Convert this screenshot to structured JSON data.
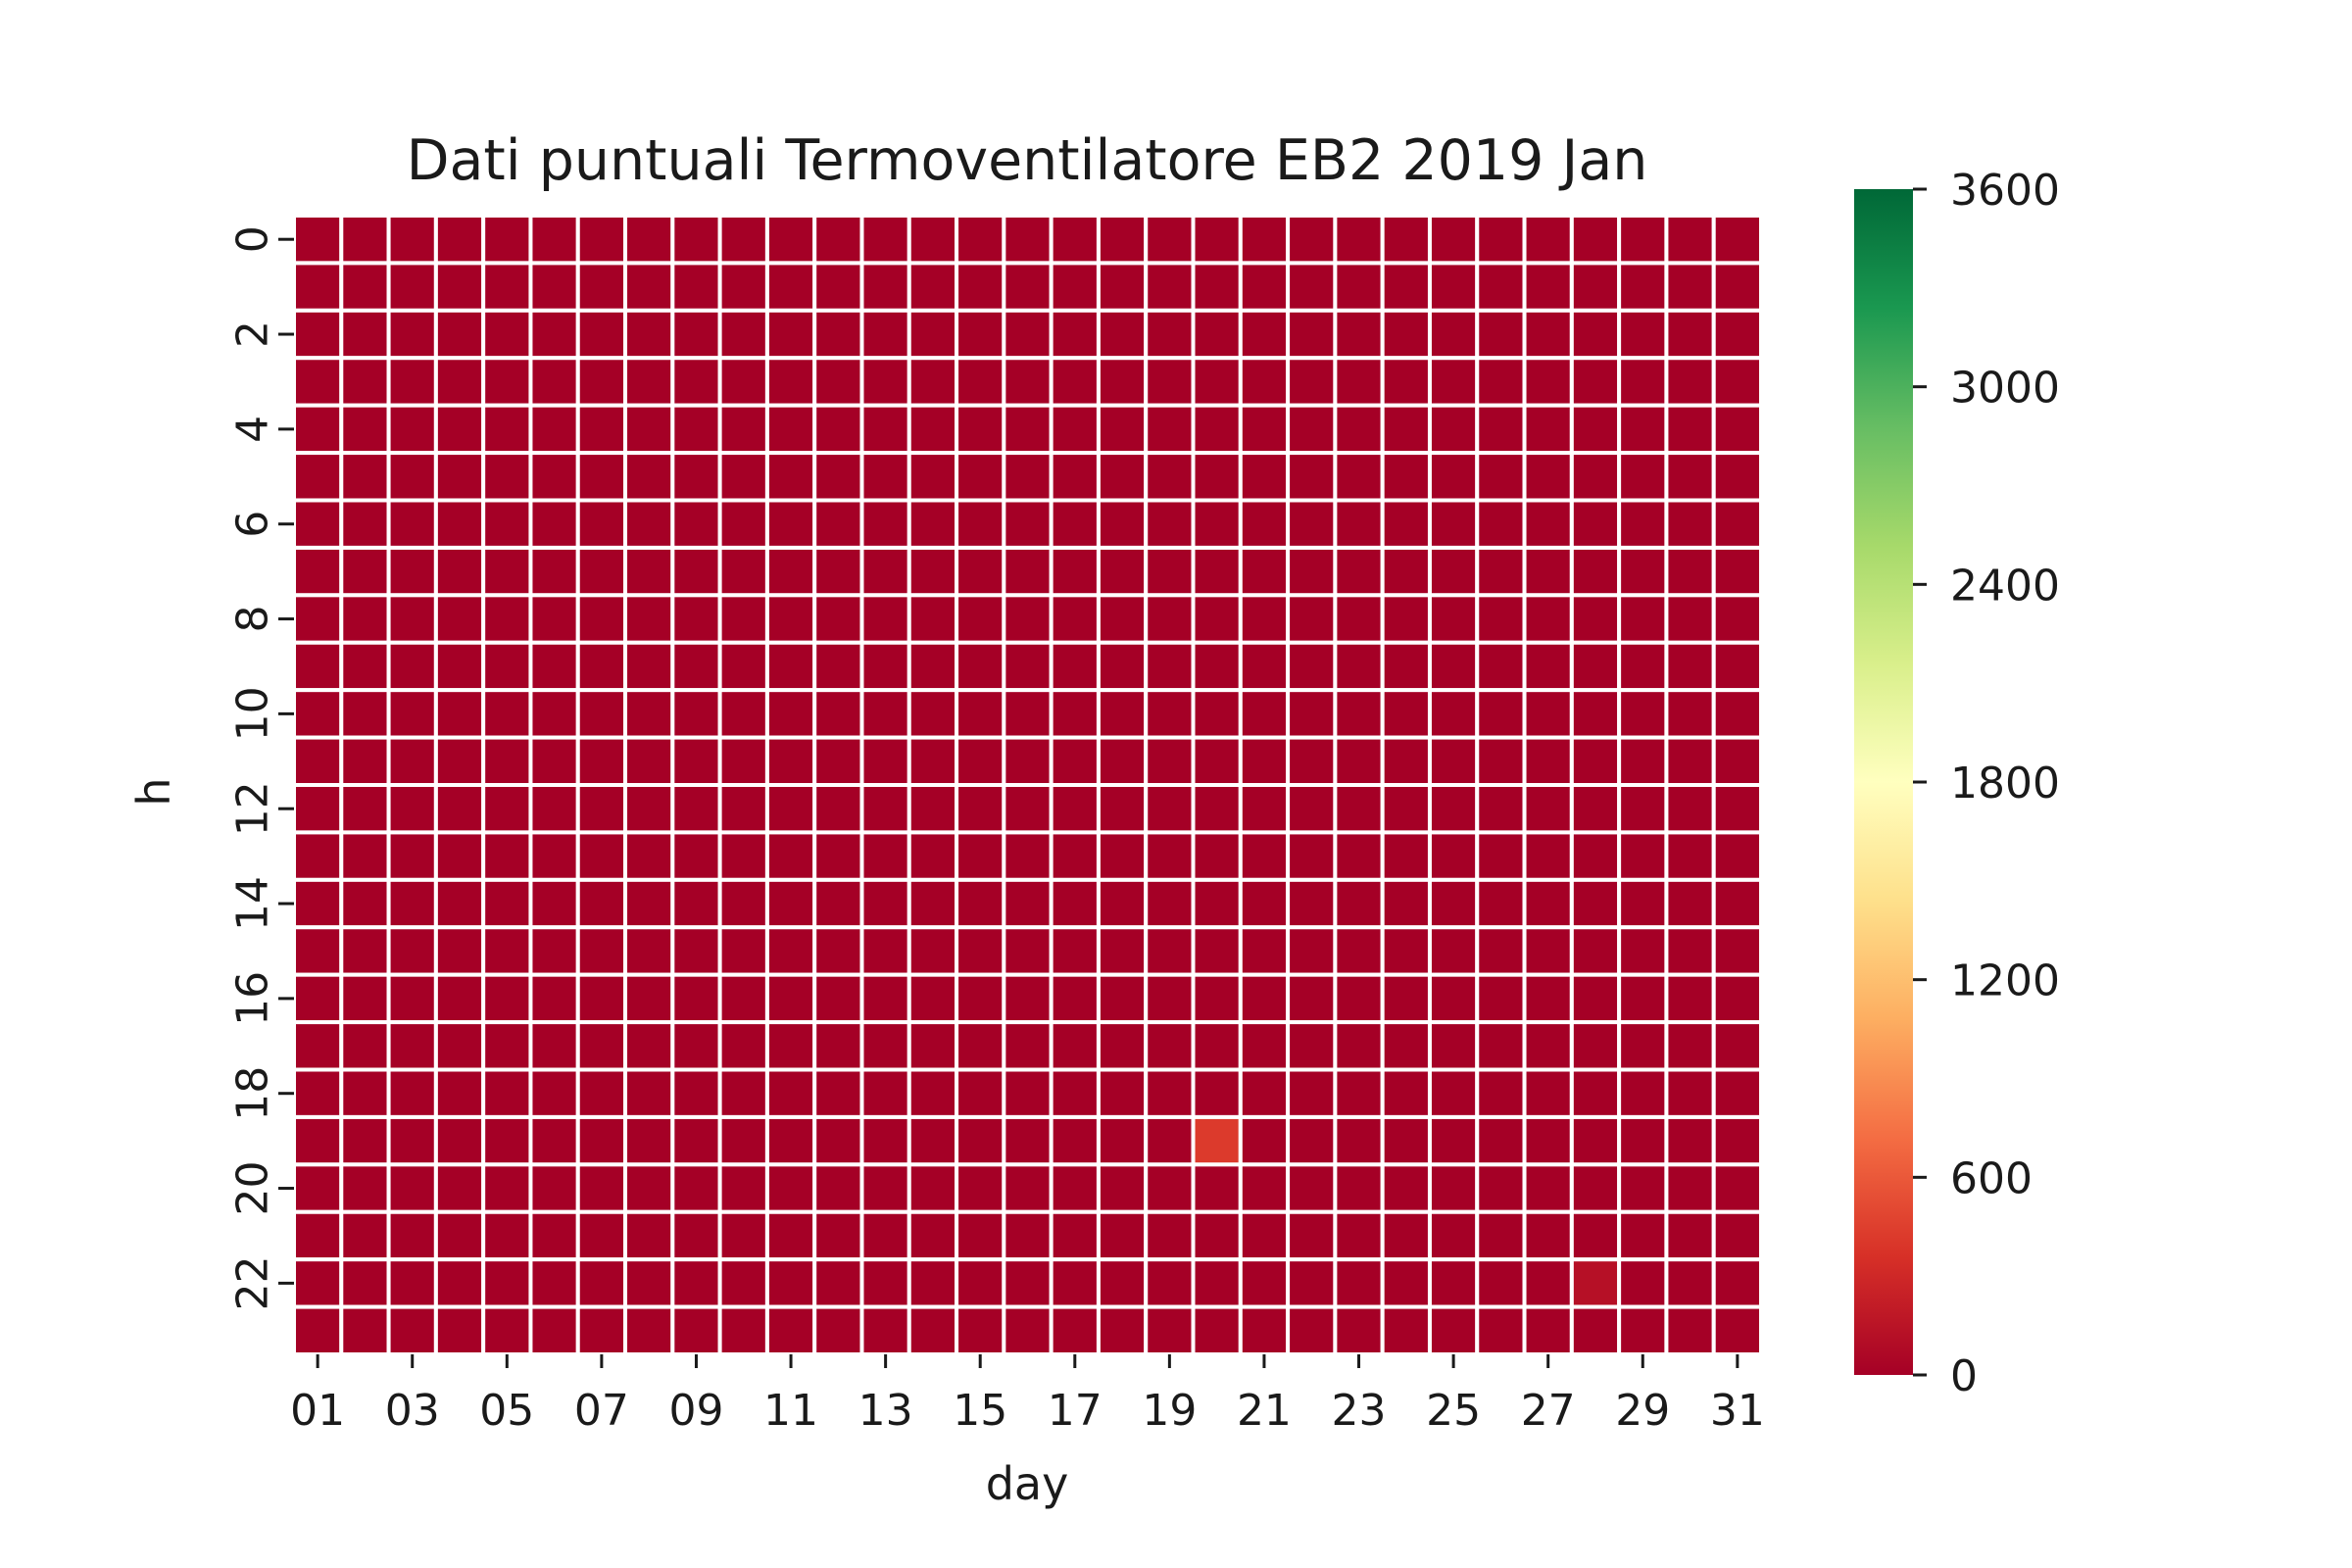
{
  "chart_data": {
    "type": "heatmap",
    "title": "Dati puntuali Termoventilatore EB2 2019 Jan",
    "xlabel": "day",
    "ylabel": "h",
    "x_categories": [
      "01",
      "02",
      "03",
      "04",
      "05",
      "06",
      "07",
      "08",
      "09",
      "10",
      "11",
      "12",
      "13",
      "14",
      "15",
      "16",
      "17",
      "18",
      "19",
      "20",
      "21",
      "22",
      "23",
      "24",
      "25",
      "26",
      "27",
      "28",
      "29",
      "30",
      "31"
    ],
    "x_tick_labels": [
      "01",
      "03",
      "05",
      "07",
      "09",
      "11",
      "13",
      "15",
      "17",
      "19",
      "21",
      "23",
      "25",
      "27",
      "29",
      "31"
    ],
    "y_categories": [
      0,
      1,
      2,
      3,
      4,
      5,
      6,
      7,
      8,
      9,
      10,
      11,
      12,
      13,
      14,
      15,
      16,
      17,
      18,
      19,
      20,
      21,
      22,
      23
    ],
    "y_tick_labels": [
      "0",
      "2",
      "4",
      "6",
      "8",
      "10",
      "12",
      "14",
      "16",
      "18",
      "20",
      "22"
    ],
    "default_value": 0,
    "nonzero_cells": [
      {
        "day": "20",
        "h": 19,
        "value": 420
      },
      {
        "day": "28",
        "h": 22,
        "value": 120
      }
    ],
    "colorbar": {
      "colormap": "RdYlGn",
      "min": 0,
      "max": 3600,
      "ticks": [
        "0",
        "600",
        "1200",
        "1800",
        "2400",
        "3000",
        "3600"
      ],
      "colors": [
        "#a50026",
        "#d73027",
        "#f46d43",
        "#fdae61",
        "#fee08b",
        "#ffffbf",
        "#d9ef8b",
        "#a6d96a",
        "#66bd63",
        "#1a9850",
        "#006837"
      ]
    },
    "grid_line_color": "#ffffff"
  }
}
